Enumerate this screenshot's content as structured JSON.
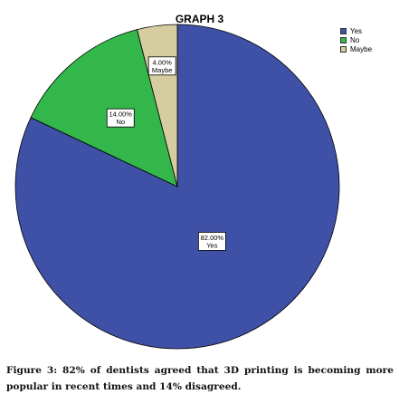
{
  "chart_data": {
    "type": "pie",
    "title": "GRAPH 3",
    "categories": [
      "Yes",
      "No",
      "Maybe"
    ],
    "values": [
      82,
      14,
      4
    ],
    "value_labels": [
      "82.00%",
      "14.00%",
      "4.00%"
    ],
    "colors": [
      "#3f51a6",
      "#33b64a",
      "#d5cc9f"
    ],
    "legend": {
      "position": "top-right",
      "entries": [
        "Yes",
        "No",
        "Maybe"
      ]
    }
  },
  "caption": "Figure 3: 82% of dentists agreed that 3D printing is becoming more popular in recent times and 14% disagreed."
}
